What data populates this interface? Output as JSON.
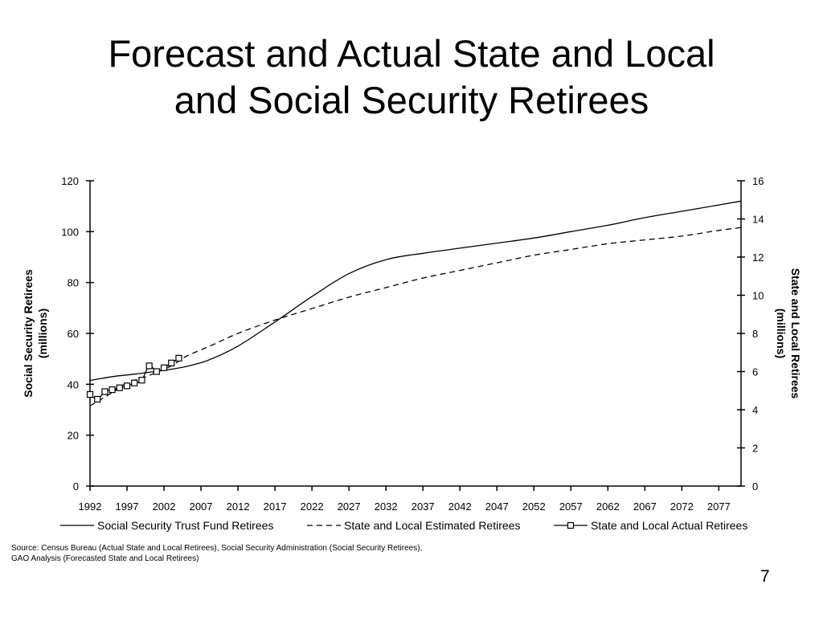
{
  "slide": {
    "title_line1": "Forecast and Actual State and Local",
    "title_line2": "and Social Security Retirees",
    "source": "Source: Census Bureau (Actual State and Local Retirees), Social Security Administration (Social Security Retirees), GAO Analysis (Forecasted State and Local Retirees)",
    "page_number": "7"
  },
  "chart_data": {
    "type": "line",
    "title": "Forecast and Actual State and Local and Social Security Retirees",
    "xlabel": "",
    "ylabel_left": "Social Security Retirees (millions)",
    "ylabel_right": "State and Local Retirees (millions)",
    "xlim": [
      1992,
      2080
    ],
    "x_ticks": [
      1992,
      1997,
      2002,
      2007,
      2012,
      2017,
      2022,
      2027,
      2032,
      2037,
      2042,
      2047,
      2052,
      2057,
      2062,
      2067,
      2072,
      2077
    ],
    "ylim_left": [
      0,
      120
    ],
    "y_ticks_left": [
      0,
      20,
      40,
      60,
      80,
      100,
      120
    ],
    "ylim_right": [
      0,
      16
    ],
    "y_ticks_right": [
      0,
      2,
      4,
      6,
      8,
      10,
      12,
      14,
      16
    ],
    "grid": false,
    "legend_position": "bottom",
    "series": [
      {
        "name": "Social Security Trust Fund Retirees",
        "axis": "left",
        "style": "solid",
        "x": [
          1992,
          1995,
          1998,
          2002,
          2005,
          2008,
          2012,
          2017,
          2022,
          2027,
          2032,
          2037,
          2042,
          2047,
          2052,
          2057,
          2062,
          2067,
          2072,
          2077,
          2080
        ],
        "values": [
          41.5,
          43,
          44,
          45.5,
          47,
          49.5,
          55,
          64.5,
          74.5,
          83.5,
          89,
          91.5,
          93.5,
          95.5,
          97.5,
          100,
          102.5,
          105.5,
          108,
          110.5,
          112
        ]
      },
      {
        "name": "State and Local Estimated Retirees",
        "axis": "right",
        "style": "dashed",
        "x": [
          1992,
          1995,
          1997,
          2000,
          2003,
          2005,
          2008,
          2012,
          2017,
          2022,
          2027,
          2032,
          2037,
          2042,
          2047,
          2052,
          2057,
          2062,
          2067,
          2072,
          2077,
          2080
        ],
        "values": [
          4.2,
          4.9,
          5.4,
          5.8,
          6.3,
          6.8,
          7.3,
          8.0,
          8.7,
          9.3,
          9.9,
          10.4,
          10.9,
          11.3,
          11.7,
          12.1,
          12.4,
          12.7,
          12.9,
          13.1,
          13.4,
          13.55
        ]
      },
      {
        "name": "State and Local Actual Retirees",
        "axis": "right",
        "style": "solid-square-markers",
        "x": [
          1992,
          1993,
          1994,
          1995,
          1996,
          1997,
          1998,
          1999,
          2000,
          2001,
          2002,
          2003,
          2004
        ],
        "values": [
          4.8,
          4.55,
          4.95,
          5.05,
          5.15,
          5.25,
          5.4,
          5.55,
          6.3,
          6.0,
          6.2,
          6.45,
          6.7
        ]
      }
    ]
  }
}
